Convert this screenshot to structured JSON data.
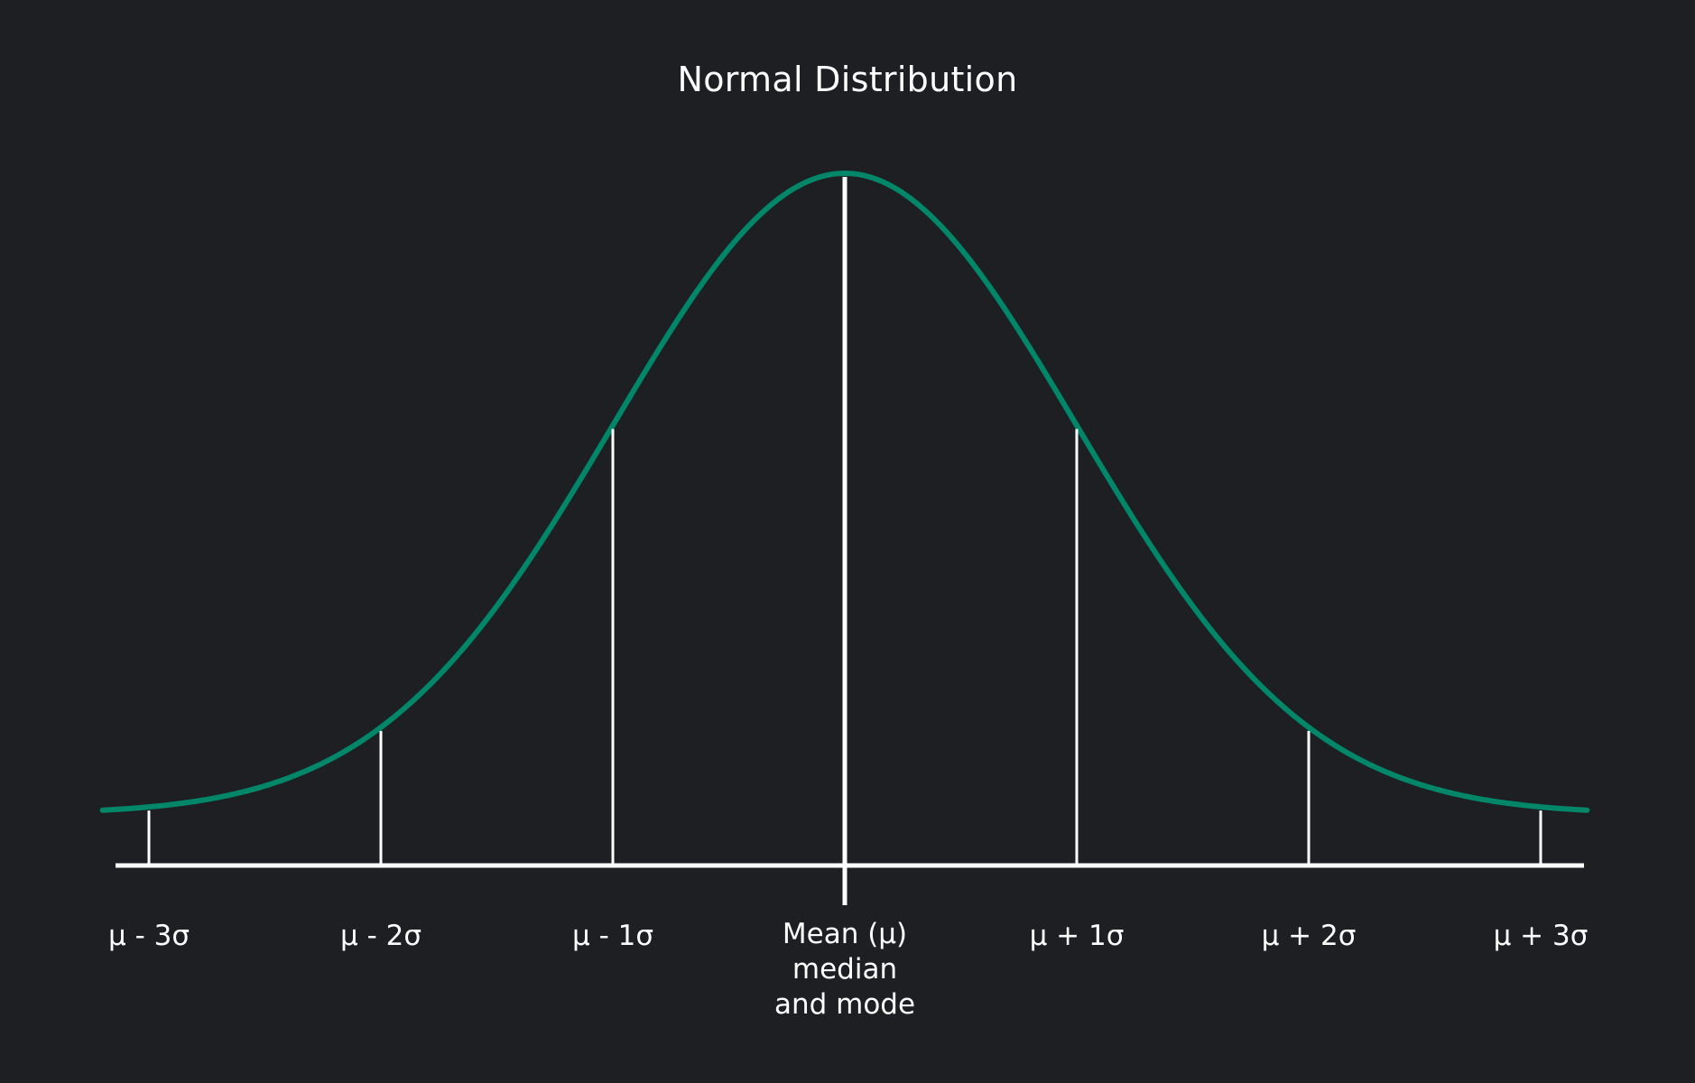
{
  "chart_data": {
    "type": "line",
    "title": "Normal Distribution",
    "xlabel": "",
    "ylabel": "",
    "xlim": [
      -3.2,
      3.2
    ],
    "grid": false,
    "legend": "none",
    "ticks": [
      {
        "x": -3,
        "label": "μ - 3σ"
      },
      {
        "x": -2,
        "label": "μ - 2σ"
      },
      {
        "x": -1,
        "label": "μ - 1σ"
      },
      {
        "x": 1,
        "label": "μ + 1σ"
      },
      {
        "x": 2,
        "label": "μ + 2σ"
      },
      {
        "x": 3,
        "label": "μ + 3σ"
      }
    ],
    "mean_label": [
      "Mean (μ)",
      "median",
      "and mode"
    ],
    "series": [
      {
        "curve": "normal density",
        "mu": 0,
        "sigma": 1,
        "color": "#00876a"
      }
    ],
    "axis_color": "#ffffff",
    "background": "#1d1f22"
  }
}
